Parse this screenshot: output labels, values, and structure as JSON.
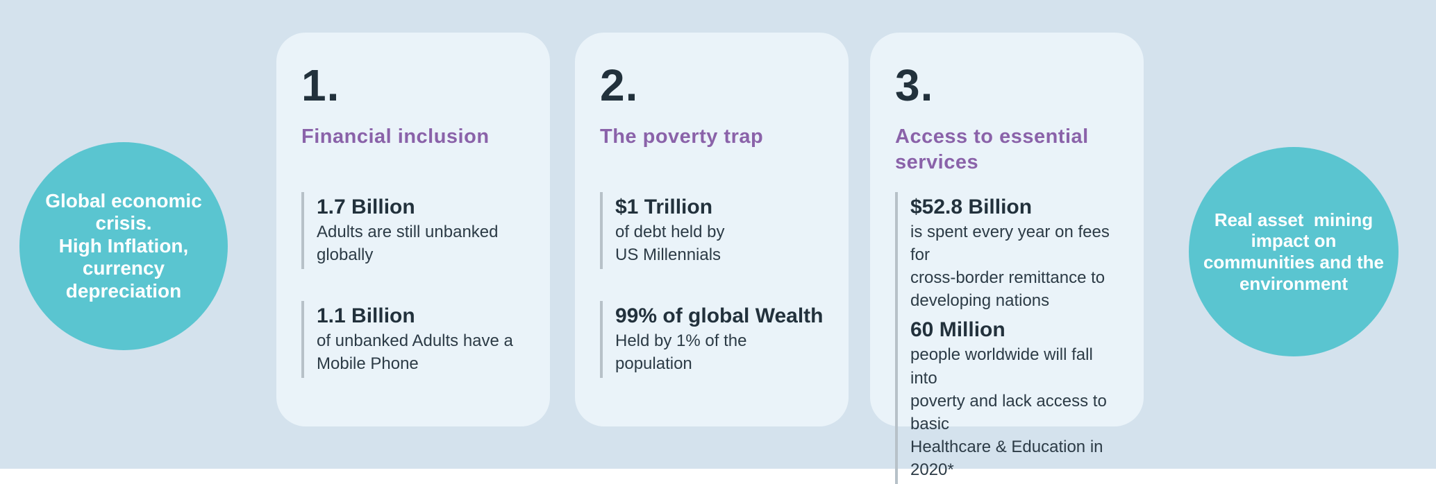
{
  "colors": {
    "page_background": "#d4e2ed",
    "card_background": "#eaf3f9",
    "bubble_teal": "#5ac5d0",
    "heading_purple": "#8a62a9",
    "text_dark": "#22313c",
    "divider_gray": "#b7c1c8",
    "bubble_text_white": "#ffffff"
  },
  "left_bubble": {
    "text": "Global economic\ncrisis.\nHigh Inflation,\ncurrency\ndepreciation"
  },
  "right_bubble": {
    "text": "Real asset  mining\nimpact on\ncommunities and the\nenvironment"
  },
  "cards": [
    {
      "number": "1.",
      "heading": "Financial inclusion",
      "stats": [
        {
          "value": "1.7 Billion",
          "desc": "Adults are still unbanked\nglobally"
        },
        {
          "value": "1.1 Billion",
          "desc": "of unbanked Adults have a\nMobile Phone"
        }
      ]
    },
    {
      "number": "2.",
      "heading": "The poverty trap",
      "stats": [
        {
          "value": "$1 Trillion",
          "desc": "of debt held by\nUS Millennials"
        },
        {
          "value": "99% of global Wealth",
          "desc": "Held by 1% of the\npopulation"
        }
      ]
    },
    {
      "number": "3.",
      "heading": "Access to essential\nservices",
      "stats": [
        {
          "value": "$52.8 Billion",
          "desc": "is spent every year on fees for\ncross-border remittance to\ndeveloping nations"
        },
        {
          "value": "60 Million",
          "desc": "people worldwide will fall into\npoverty and lack access to basic\nHealthcare & Education in 2020*"
        }
      ]
    }
  ]
}
